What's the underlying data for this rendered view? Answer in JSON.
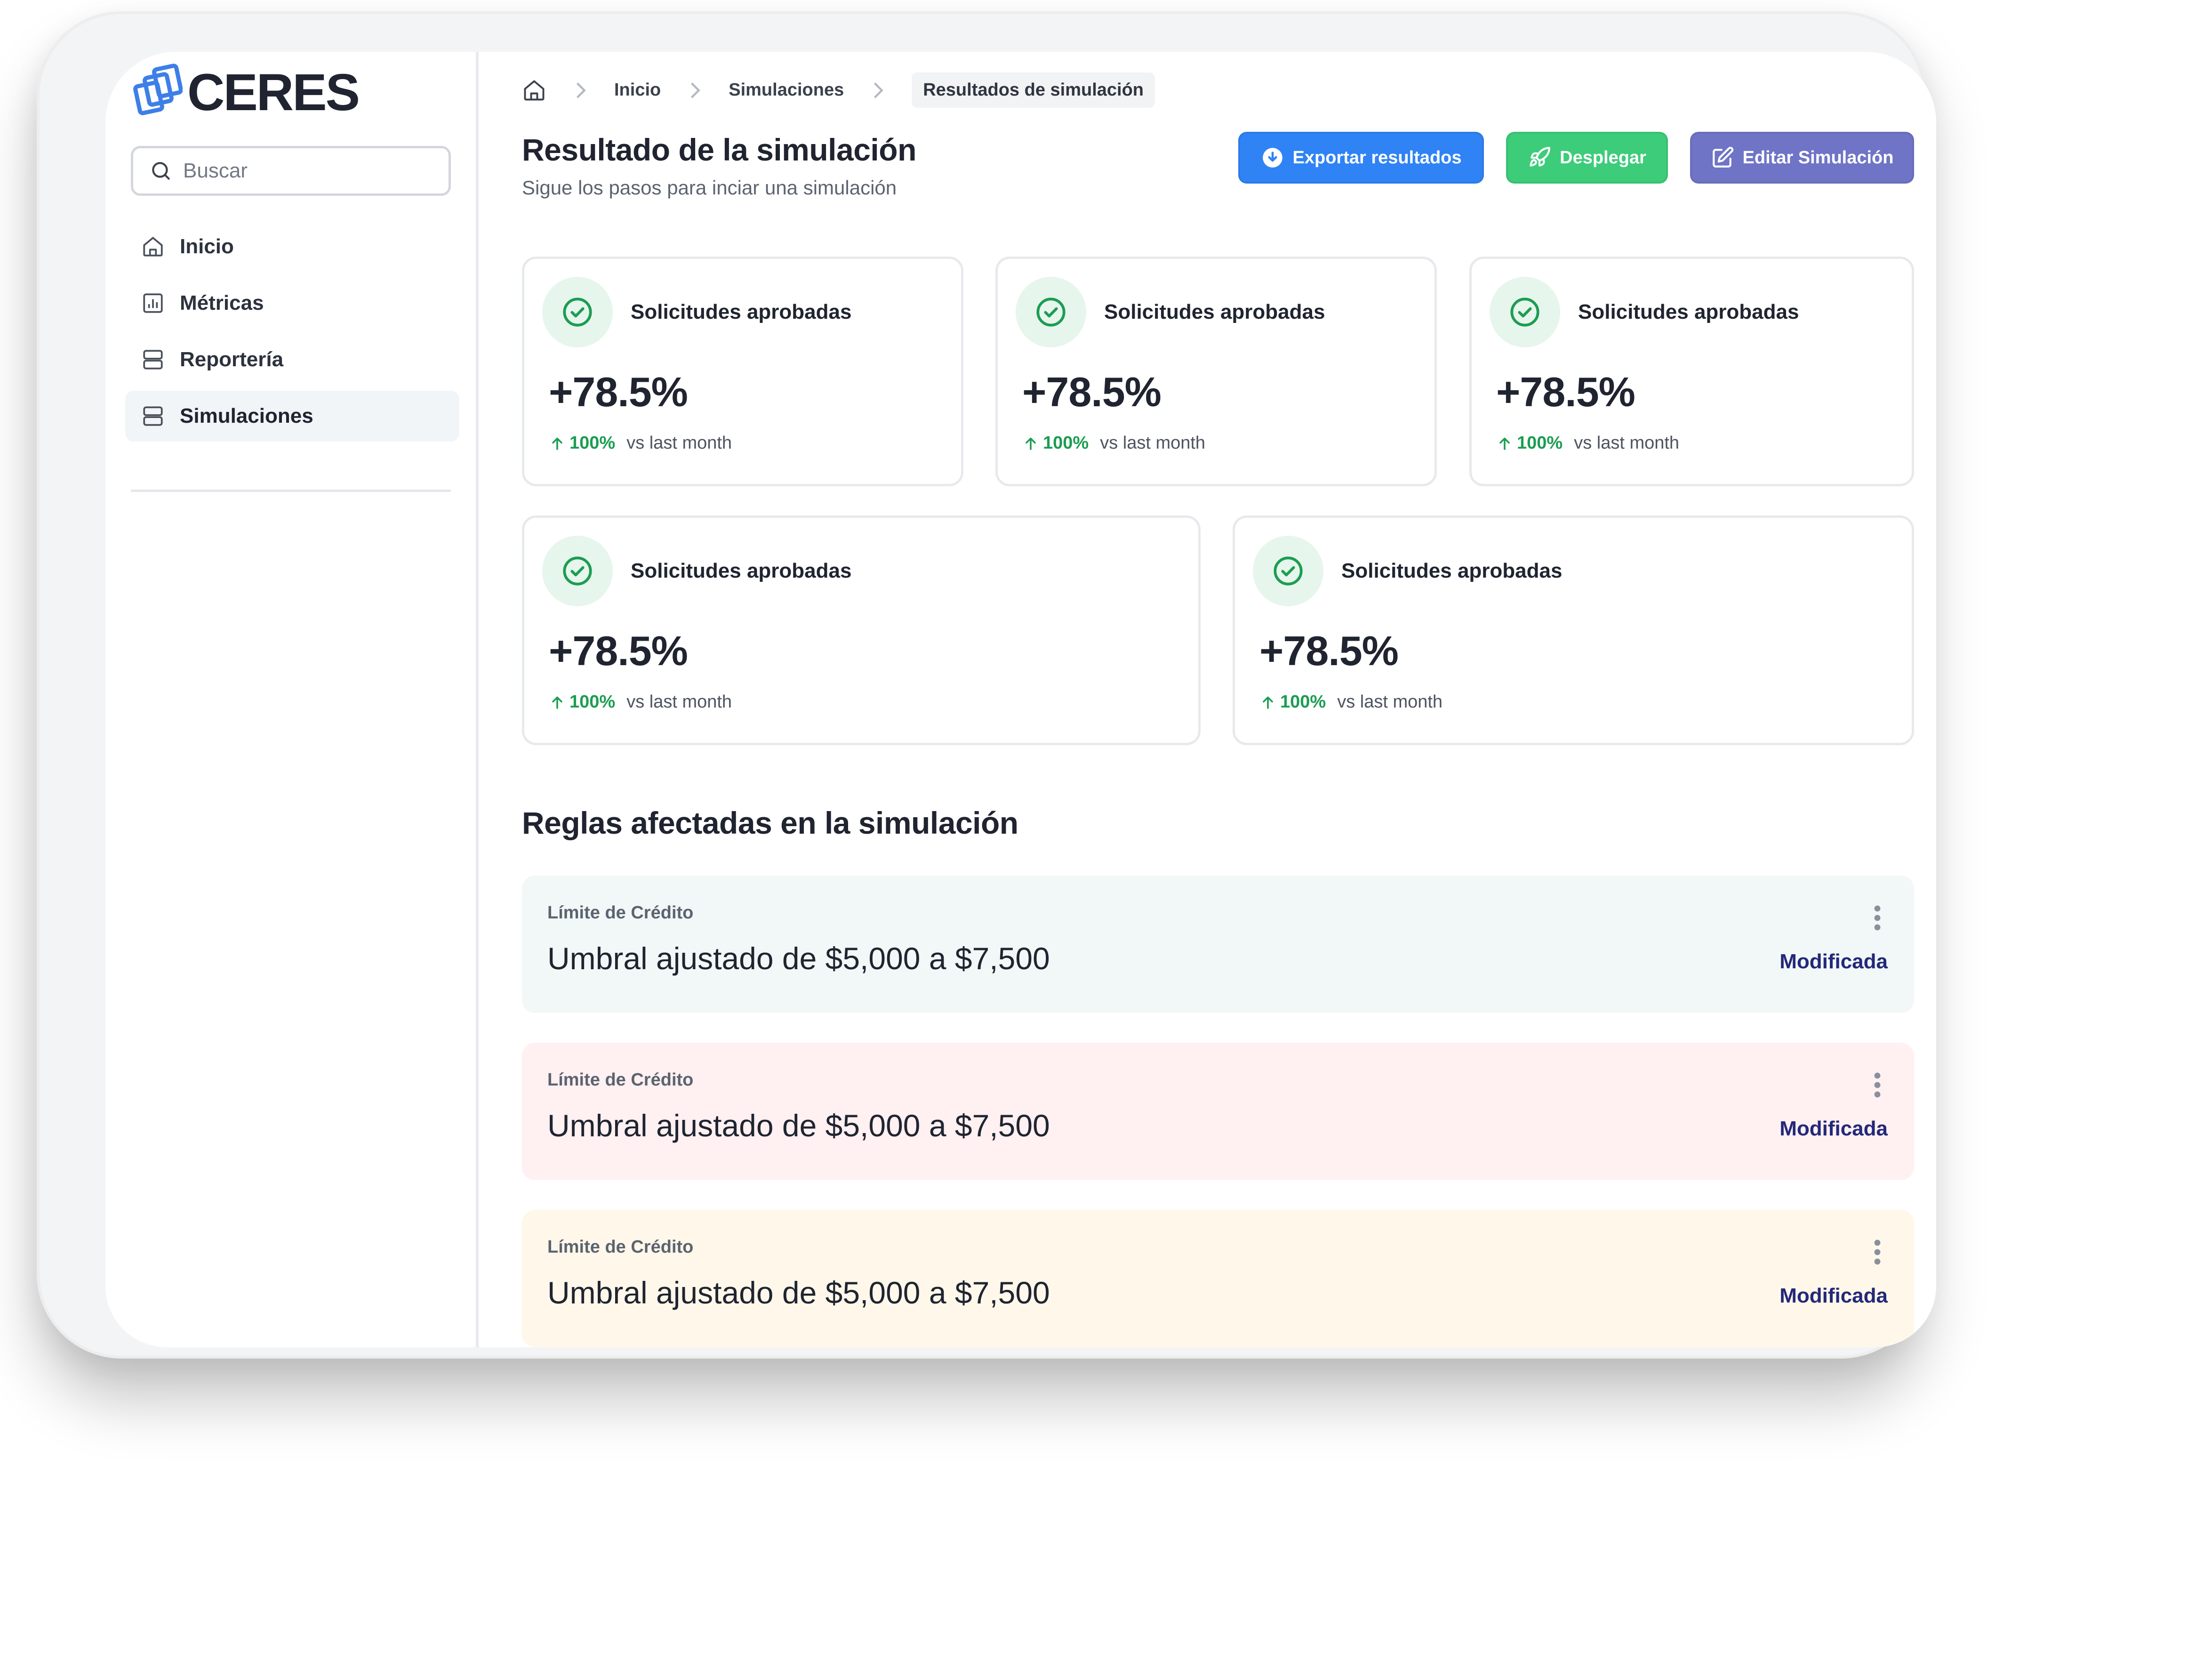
{
  "app": {
    "brand": "CERES"
  },
  "search": {
    "placeholder": "Buscar"
  },
  "sidebar": {
    "items": [
      {
        "label": "Inicio",
        "icon": "home-icon"
      },
      {
        "label": "Métricas",
        "icon": "bar-chart-icon"
      },
      {
        "label": "Reportería",
        "icon": "server-icon"
      },
      {
        "label": "Simulaciones",
        "icon": "server-icon",
        "active": true
      }
    ]
  },
  "breadcrumb": [
    "Inicio",
    "Simulaciones",
    "Resultados de simulación"
  ],
  "header": {
    "title": "Resultado de la simulación",
    "subtitle": "Sigue los pasos para inciar una simulación",
    "buttons": {
      "export": "Exportar resultados",
      "deploy": "Desplegar",
      "edit": "Editar Simulación"
    }
  },
  "stats": [
    {
      "title": "Solicitudes aprobadas",
      "value": "+78.5%",
      "delta": "100%",
      "vs": "vs last month"
    },
    {
      "title": "Solicitudes aprobadas",
      "value": "+78.5%",
      "delta": "100%",
      "vs": "vs last month"
    },
    {
      "title": "Solicitudes aprobadas",
      "value": "+78.5%",
      "delta": "100%",
      "vs": "vs last month"
    },
    {
      "title": "Solicitudes aprobadas",
      "value": "+78.5%",
      "delta": "100%",
      "vs": "vs last month"
    },
    {
      "title": "Solicitudes aprobadas",
      "value": "+78.5%",
      "delta": "100%",
      "vs": "vs last month"
    }
  ],
  "rules_section": {
    "title": "Reglas afectadas en la simulación"
  },
  "rules": [
    {
      "label": "Límite de Crédito",
      "text": "Umbral ajustado de $5,000 a $7,500",
      "status": "Modificada"
    },
    {
      "label": "Límite de Crédito",
      "text": "Umbral ajustado de $5,000 a $7,500",
      "status": "Modificada"
    },
    {
      "label": "Límite de Crédito",
      "text": "Umbral ajustado de $5,000 a $7,500",
      "status": "Modificada"
    }
  ],
  "colors": {
    "export_button": "#2f83f5",
    "deploy_button": "#3dcc7a",
    "edit_button": "#6f74c6",
    "positive": "#1c9d52",
    "status_text": "#23287a"
  }
}
